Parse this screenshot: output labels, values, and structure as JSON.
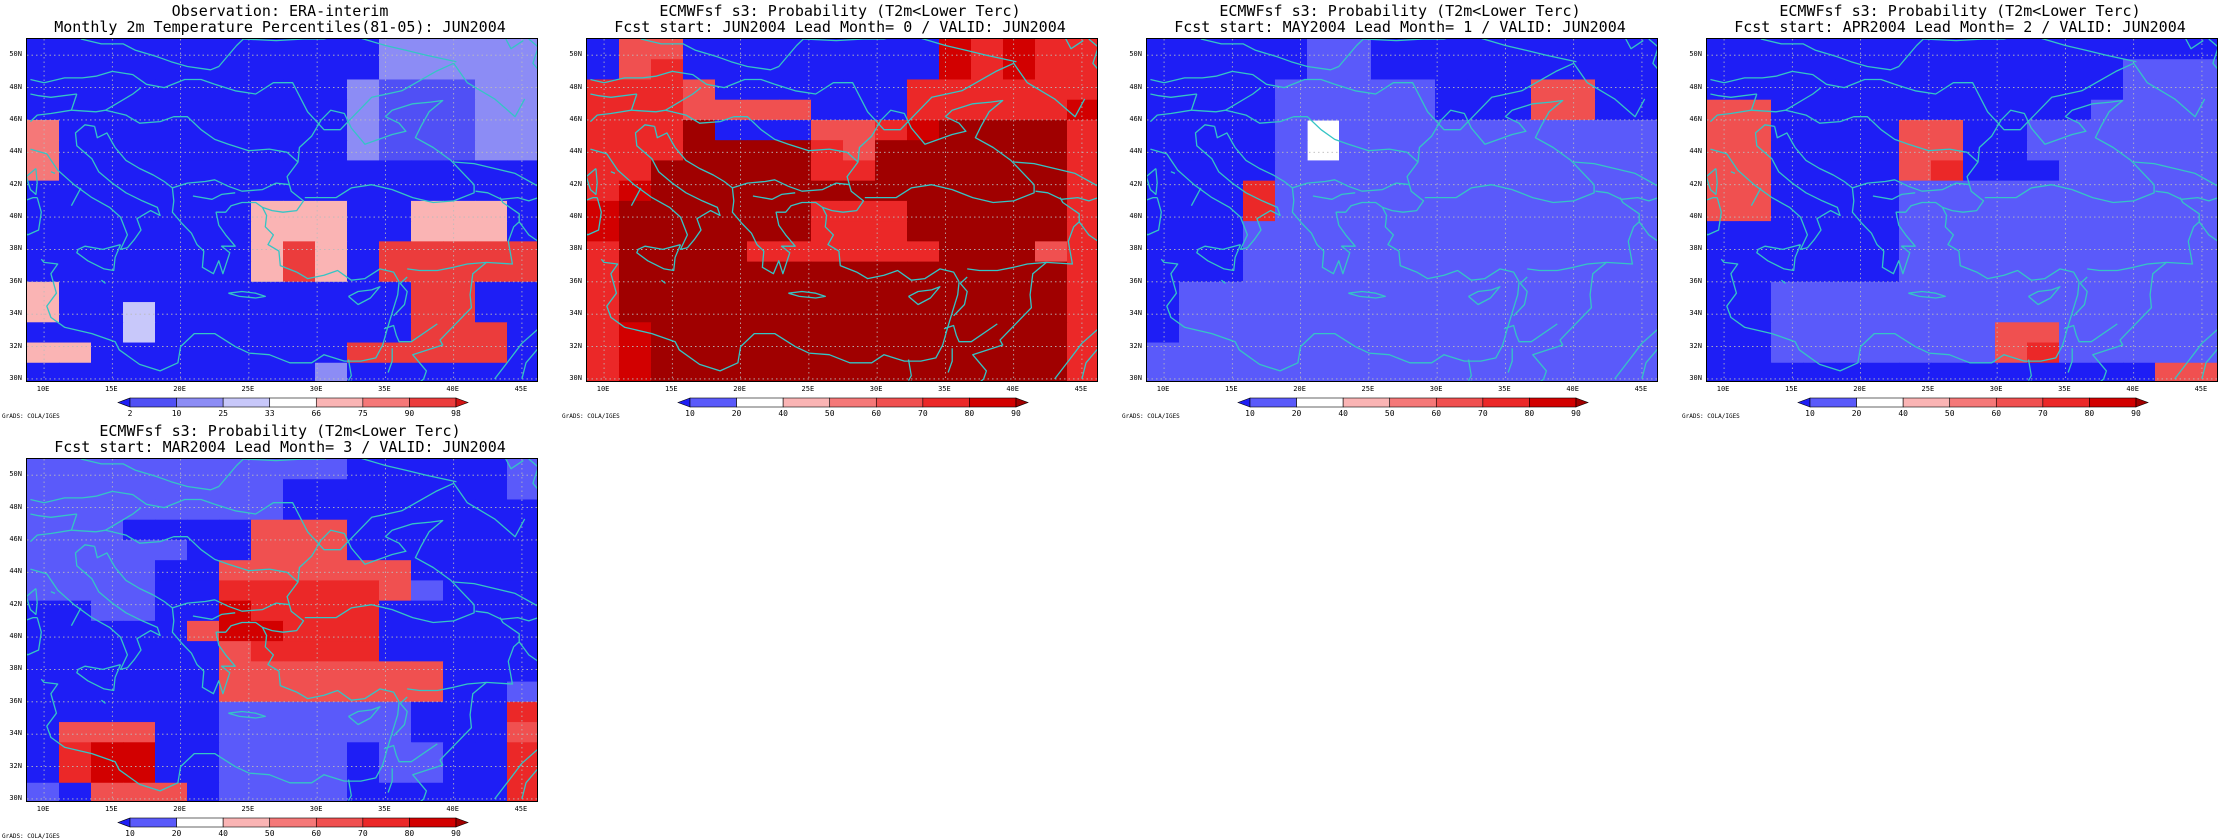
{
  "panels": [
    {
      "id": "observation",
      "title_line1": "Observation: ERA-interim",
      "title_line2": "Monthly 2m Temperature Percentiles(81-05): JUN2004",
      "colorbar": {
        "labels": [
          "2",
          "10",
          "25",
          "33",
          "66",
          "75",
          "90",
          "98"
        ],
        "colors": [
          "#1e1ef5",
          "#5050f5",
          "#8c8cf5",
          "#c8c8fa",
          "#ffffff",
          "#fab4b4",
          "#f57878",
          "#eb3c3c",
          "#d21414"
        ]
      },
      "grid": [
        "0000000000022222",
        "0000000000022222",
        "0000000000211122",
        "0000000000211122",
        "6000000000211122",
        "6000000000211122",
        "6000000000000000",
        "0000000000000000",
        "0000000555005550",
        "0000000555005550",
        "0000000575077777",
        "0000000575077777",
        "5000000000007700",
        "5003000000007700",
        "0003000000007770",
        "5500000000777770",
        "0000000002000000"
      ]
    },
    {
      "id": "lead0",
      "title_line1": "ECMWFsf s3: Probability (T2m<Lower Terc)",
      "title_line2": "Fcst start: JUN2004  Lead Month= 0 / VALID: JUN2004",
      "colorbar": {
        "labels": [
          "10",
          "20",
          "40",
          "50",
          "60",
          "70",
          "80",
          "90"
        ],
        "colors": [
          "#1e1ef5",
          "#5a5afa",
          "#ffffff",
          "#fab4b4",
          "#f57878",
          "#f05050",
          "#eb2828",
          "#d20000",
          "#a00000"
        ]
      },
      "grid": [
        "0550000000076766",
        "0560000000076766",
        "6665000000666666",
        "6665555000666667",
        "6668000556788886",
        "6668888658888886",
        "6688888668888886",
        "6788888888888886",
        "7888888666888886",
        "7888888666888886",
        "6888866666688856",
        "6888888888888886",
        "6888888888888886",
        "6888888888888886",
        "6788888888888886",
        "6788888888888886",
        "6788888888888886"
      ]
    },
    {
      "id": "lead1",
      "title_line1": "ECMWFsf s3: Probability (T2m<Lower Terc)",
      "title_line2": "Fcst start: MAY2004  Lead Month= 1 / VALID: JUN2004",
      "colorbar": {
        "labels": [
          "10",
          "20",
          "40",
          "50",
          "60",
          "70",
          "80",
          "90"
        ],
        "colors": [
          "#1e1ef5",
          "#5a5afa",
          "#ffffff",
          "#fab4b4",
          "#f57878",
          "#f05050",
          "#eb2828",
          "#d20000",
          "#a00000"
        ]
      },
      "grid": [
        "0000011000000000",
        "0000011000000000",
        "0000111110005500",
        "0000111110005500",
        "0000121111111111",
        "0000121111111111",
        "0000111111111111",
        "0006111111111111",
        "0006111111111111",
        "0001111111111111",
        "0001111111111111",
        "0001111111111111",
        "0111111111111111",
        "0111111111111111",
        "0111111111111111",
        "1111111111111111",
        "1111111111111111"
      ]
    },
    {
      "id": "lead2",
      "title_line1": "ECMWFsf s3: Probability (T2m<Lower Terc)",
      "title_line2": "Fcst start: APR2004  Lead Month= 2 / VALID: JUN2004",
      "colorbar": {
        "labels": [
          "10",
          "20",
          "40",
          "50",
          "60",
          "70",
          "80",
          "90"
        ],
        "colors": [
          "#1e1ef5",
          "#5a5afa",
          "#ffffff",
          "#fab4b4",
          "#f57878",
          "#f05050",
          "#eb2828",
          "#d20000",
          "#a00000"
        ]
      },
      "grid": [
        "0000000000000000",
        "0000000000000111",
        "0000000000000111",
        "5500000000001111",
        "5500005500111111",
        "5500005500111111",
        "5500005600011111",
        "5500001111111111",
        "5500001111111111",
        "0000001111111111",
        "0000001111111111",
        "0000001111111111",
        "0011111111111111",
        "0011111111111111",
        "0011111115511111",
        "0011111115611111",
        "0000000000000055"
      ]
    },
    {
      "id": "lead3",
      "title_line1": "ECMWFsf s3: Probability (T2m<Lower Terc)",
      "title_line2": "Fcst start: MAR2004  Lead Month= 3 / VALID: JUN2004",
      "colorbar": {
        "labels": [
          "10",
          "20",
          "40",
          "50",
          "60",
          "70",
          "80",
          "90"
        ],
        "colors": [
          "#1e1ef5",
          "#5a5afa",
          "#ffffff",
          "#fab4b4",
          "#f57878",
          "#f05050",
          "#eb2828",
          "#d20000",
          "#a00000"
        ]
      },
      "grid": [
        "1111111111000001",
        "1111111100000001",
        "1111111100000000",
        "1110000555000000",
        "1111100555000000",
        "1111005555550000",
        "1111006666651000",
        "0011007666600000",
        "0000057766600000",
        "0000005666600000",
        "0000005555555000",
        "0000005555555001",
        "0000001111110006",
        "0555001111110005",
        "0677001111011006",
        "0677001111011006",
        "1055501111000006"
      ]
    }
  ],
  "axes": {
    "lat_labels": [
      "50N",
      "48N",
      "46N",
      "44N",
      "42N",
      "40N",
      "38N",
      "36N",
      "34N",
      "32N",
      "30N"
    ],
    "lon_labels": [
      "10E",
      "15E",
      "20E",
      "25E",
      "30E",
      "35E",
      "40E",
      "45E"
    ],
    "lat_values": [
      50,
      48,
      46,
      44,
      42,
      40,
      38,
      36,
      34,
      32,
      30
    ],
    "lon_values": [
      10,
      15,
      20,
      25,
      30,
      35,
      40,
      45
    ],
    "lon_range": [
      8.75,
      46.25
    ],
    "lat_range": [
      29.75,
      51.0
    ]
  },
  "footer": "GrADS: COLA/IGES",
  "colors": {
    "coastline": "#35c5c5",
    "gridline": "#bbbbbb",
    "frame": "#000000"
  }
}
